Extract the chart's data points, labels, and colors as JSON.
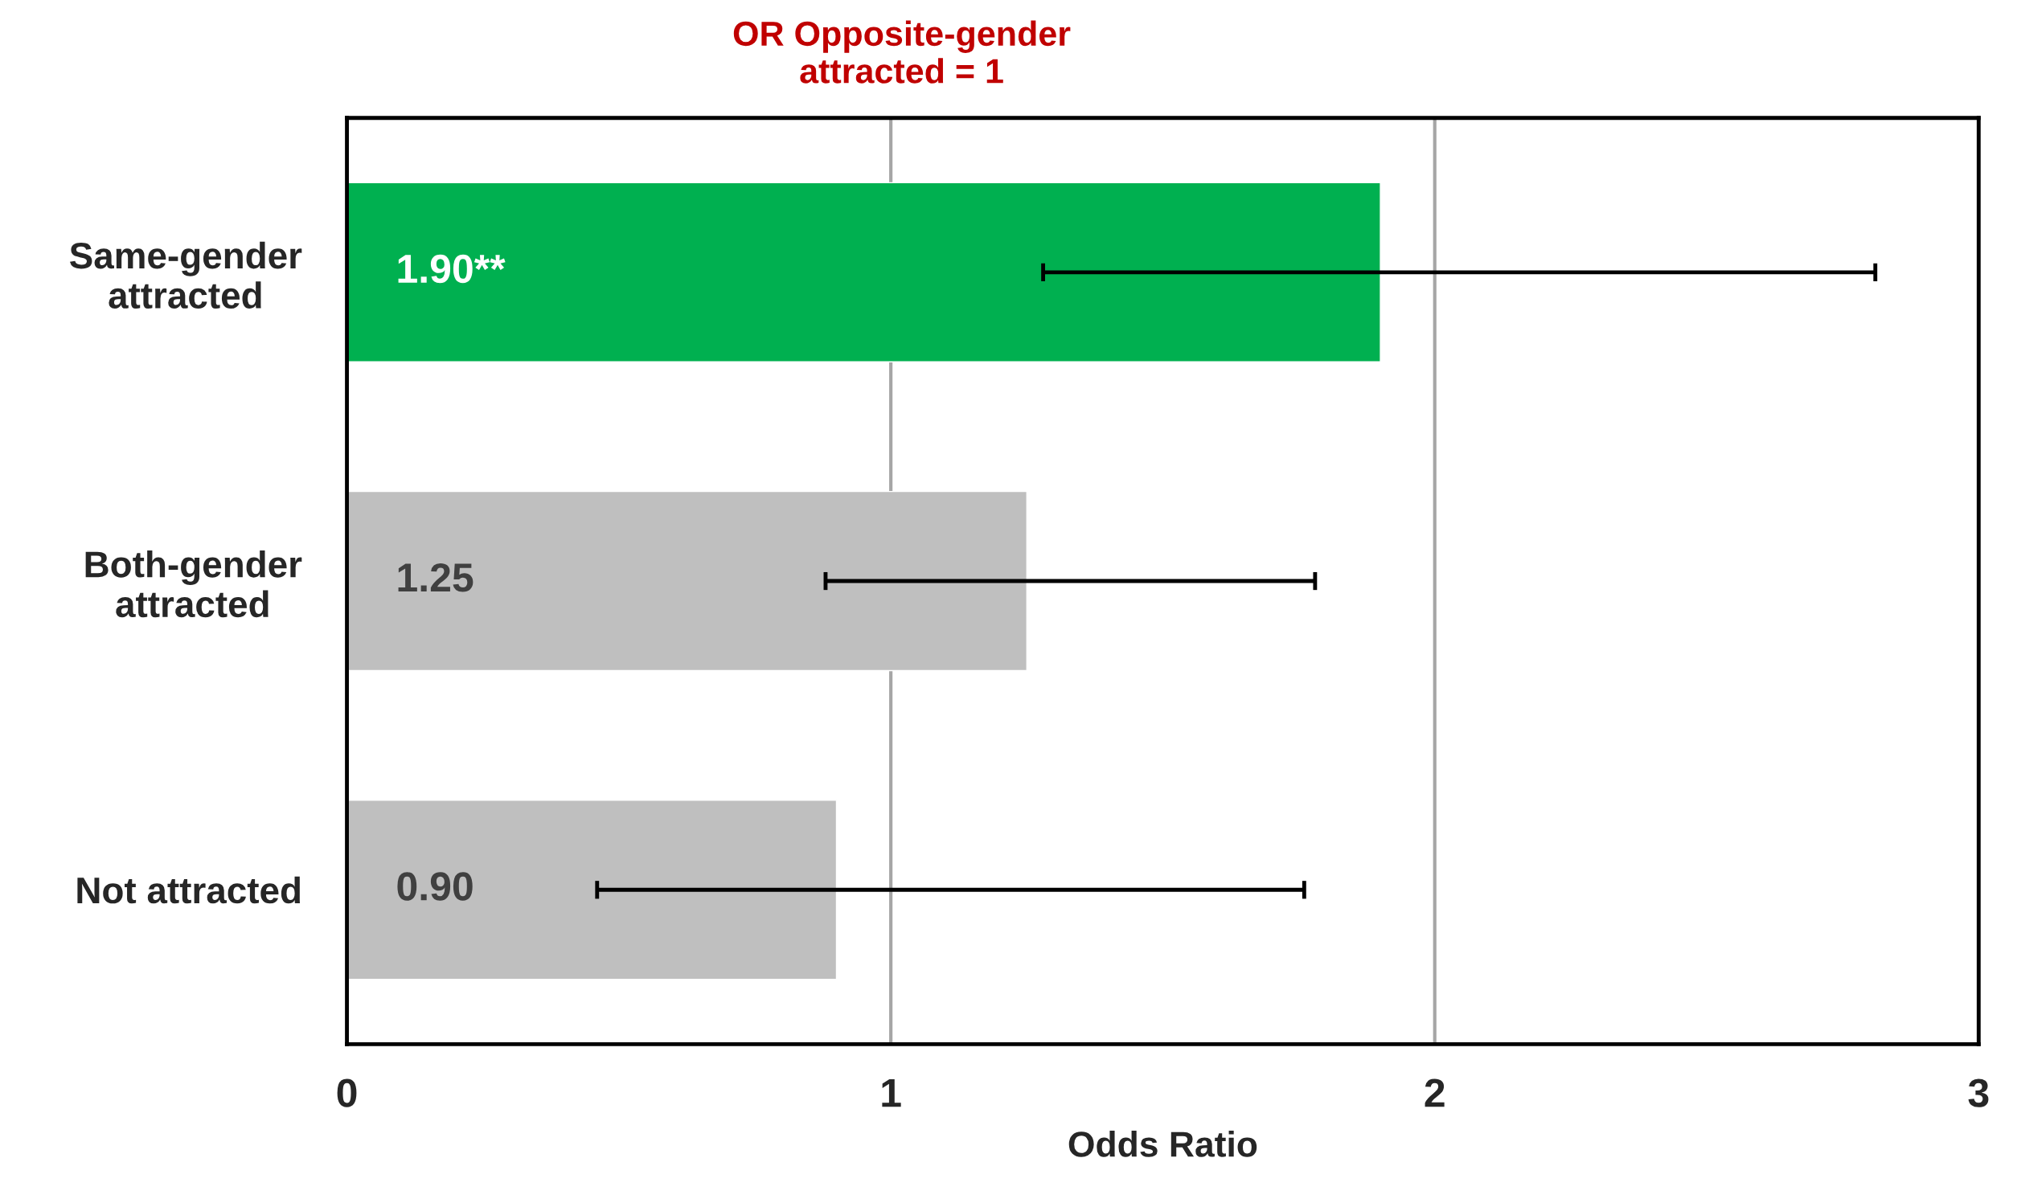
{
  "chart_data": {
    "type": "bar",
    "orientation": "horizontal",
    "xlabel": "Odds Ratio",
    "categories": [
      "Same-gender\nattracted",
      "Both-gender\nattracted",
      "Not attracted"
    ],
    "values": [
      1.9,
      1.25,
      0.9
    ],
    "colors": [
      "#00b050",
      "#bfbfbf",
      "#bfbfbf"
    ],
    "value_labels": [
      "1.90**",
      "1.25",
      "0.90"
    ],
    "errors": [
      [
        1.28,
        2.81
      ],
      [
        0.88,
        1.78
      ],
      [
        0.46,
        1.76
      ]
    ],
    "xlim": [
      0,
      3
    ],
    "xticks": [
      0,
      1,
      2,
      3
    ],
    "grid": "x",
    "annotations": [
      "OR Opposite-gender\nattracted = 1"
    ]
  }
}
